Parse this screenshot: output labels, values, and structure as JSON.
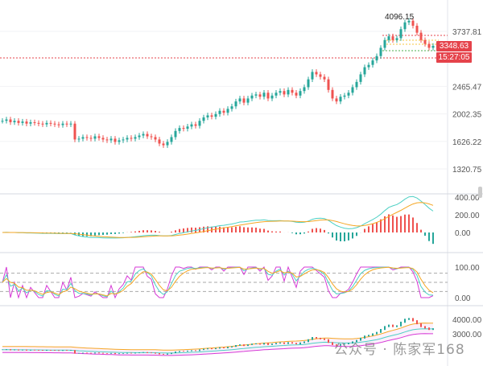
{
  "chart_data": {
    "type": "candlestick",
    "price_scale": "log",
    "price_axis_ticks": [
      "3737.81",
      "2465.47",
      "2002.35",
      "1626.22",
      "1320.75"
    ],
    "price_axis_range": [
      1200,
      4300
    ],
    "current_price_label": "3348.63",
    "countdown_label": "15:27:05",
    "high_annotation": "4096.15",
    "closes": [
      1900,
      1920,
      1880,
      1900,
      1870,
      1890,
      1860,
      1880,
      1870,
      1860,
      1850,
      1870,
      1860,
      1850,
      1840,
      1860,
      1850,
      1860,
      1650,
      1660,
      1680,
      1670,
      1660,
      1690,
      1670,
      1650,
      1640,
      1660,
      1620,
      1640,
      1650,
      1670,
      1660,
      1680,
      1700,
      1720,
      1690,
      1680,
      1650,
      1600,
      1580,
      1620,
      1680,
      1760,
      1800,
      1790,
      1820,
      1850,
      1830,
      1900,
      1950,
      1980,
      1960,
      2000,
      2050,
      2020,
      2080,
      2120,
      2200,
      2250,
      2180,
      2250,
      2300,
      2320,
      2280,
      2350,
      2250,
      2300,
      2350,
      2380,
      2320,
      2400,
      2350,
      2300,
      2380,
      2450,
      2600,
      2750,
      2700,
      2650,
      2600,
      2400,
      2250,
      2200,
      2280,
      2300,
      2350,
      2450,
      2550,
      2700,
      2850,
      2900,
      3000,
      3100,
      3300,
      3500,
      3600,
      3500,
      3550,
      3800,
      4000,
      4050,
      3900,
      3700,
      3500,
      3400,
      3300,
      3350
    ],
    "macd_pane": {
      "ticks": [
        "400.00",
        "200.00",
        "0.00"
      ],
      "range": [
        -200,
        400
      ]
    },
    "oscillator_pane": {
      "ticks": [
        "100.00",
        "0.00"
      ],
      "range": [
        0,
        100
      ],
      "levels": [
        80,
        50,
        20
      ]
    },
    "overlay_pane": {
      "ticks": [
        "4000.00",
        "3000.00"
      ]
    },
    "colors": {
      "up": "#26a69a",
      "down": "#ef5350",
      "signal": "#f5a623",
      "macd": "#4dd0c4",
      "osc": "#d63ad6"
    }
  },
  "watermark": "公众号 · 陈家军168"
}
